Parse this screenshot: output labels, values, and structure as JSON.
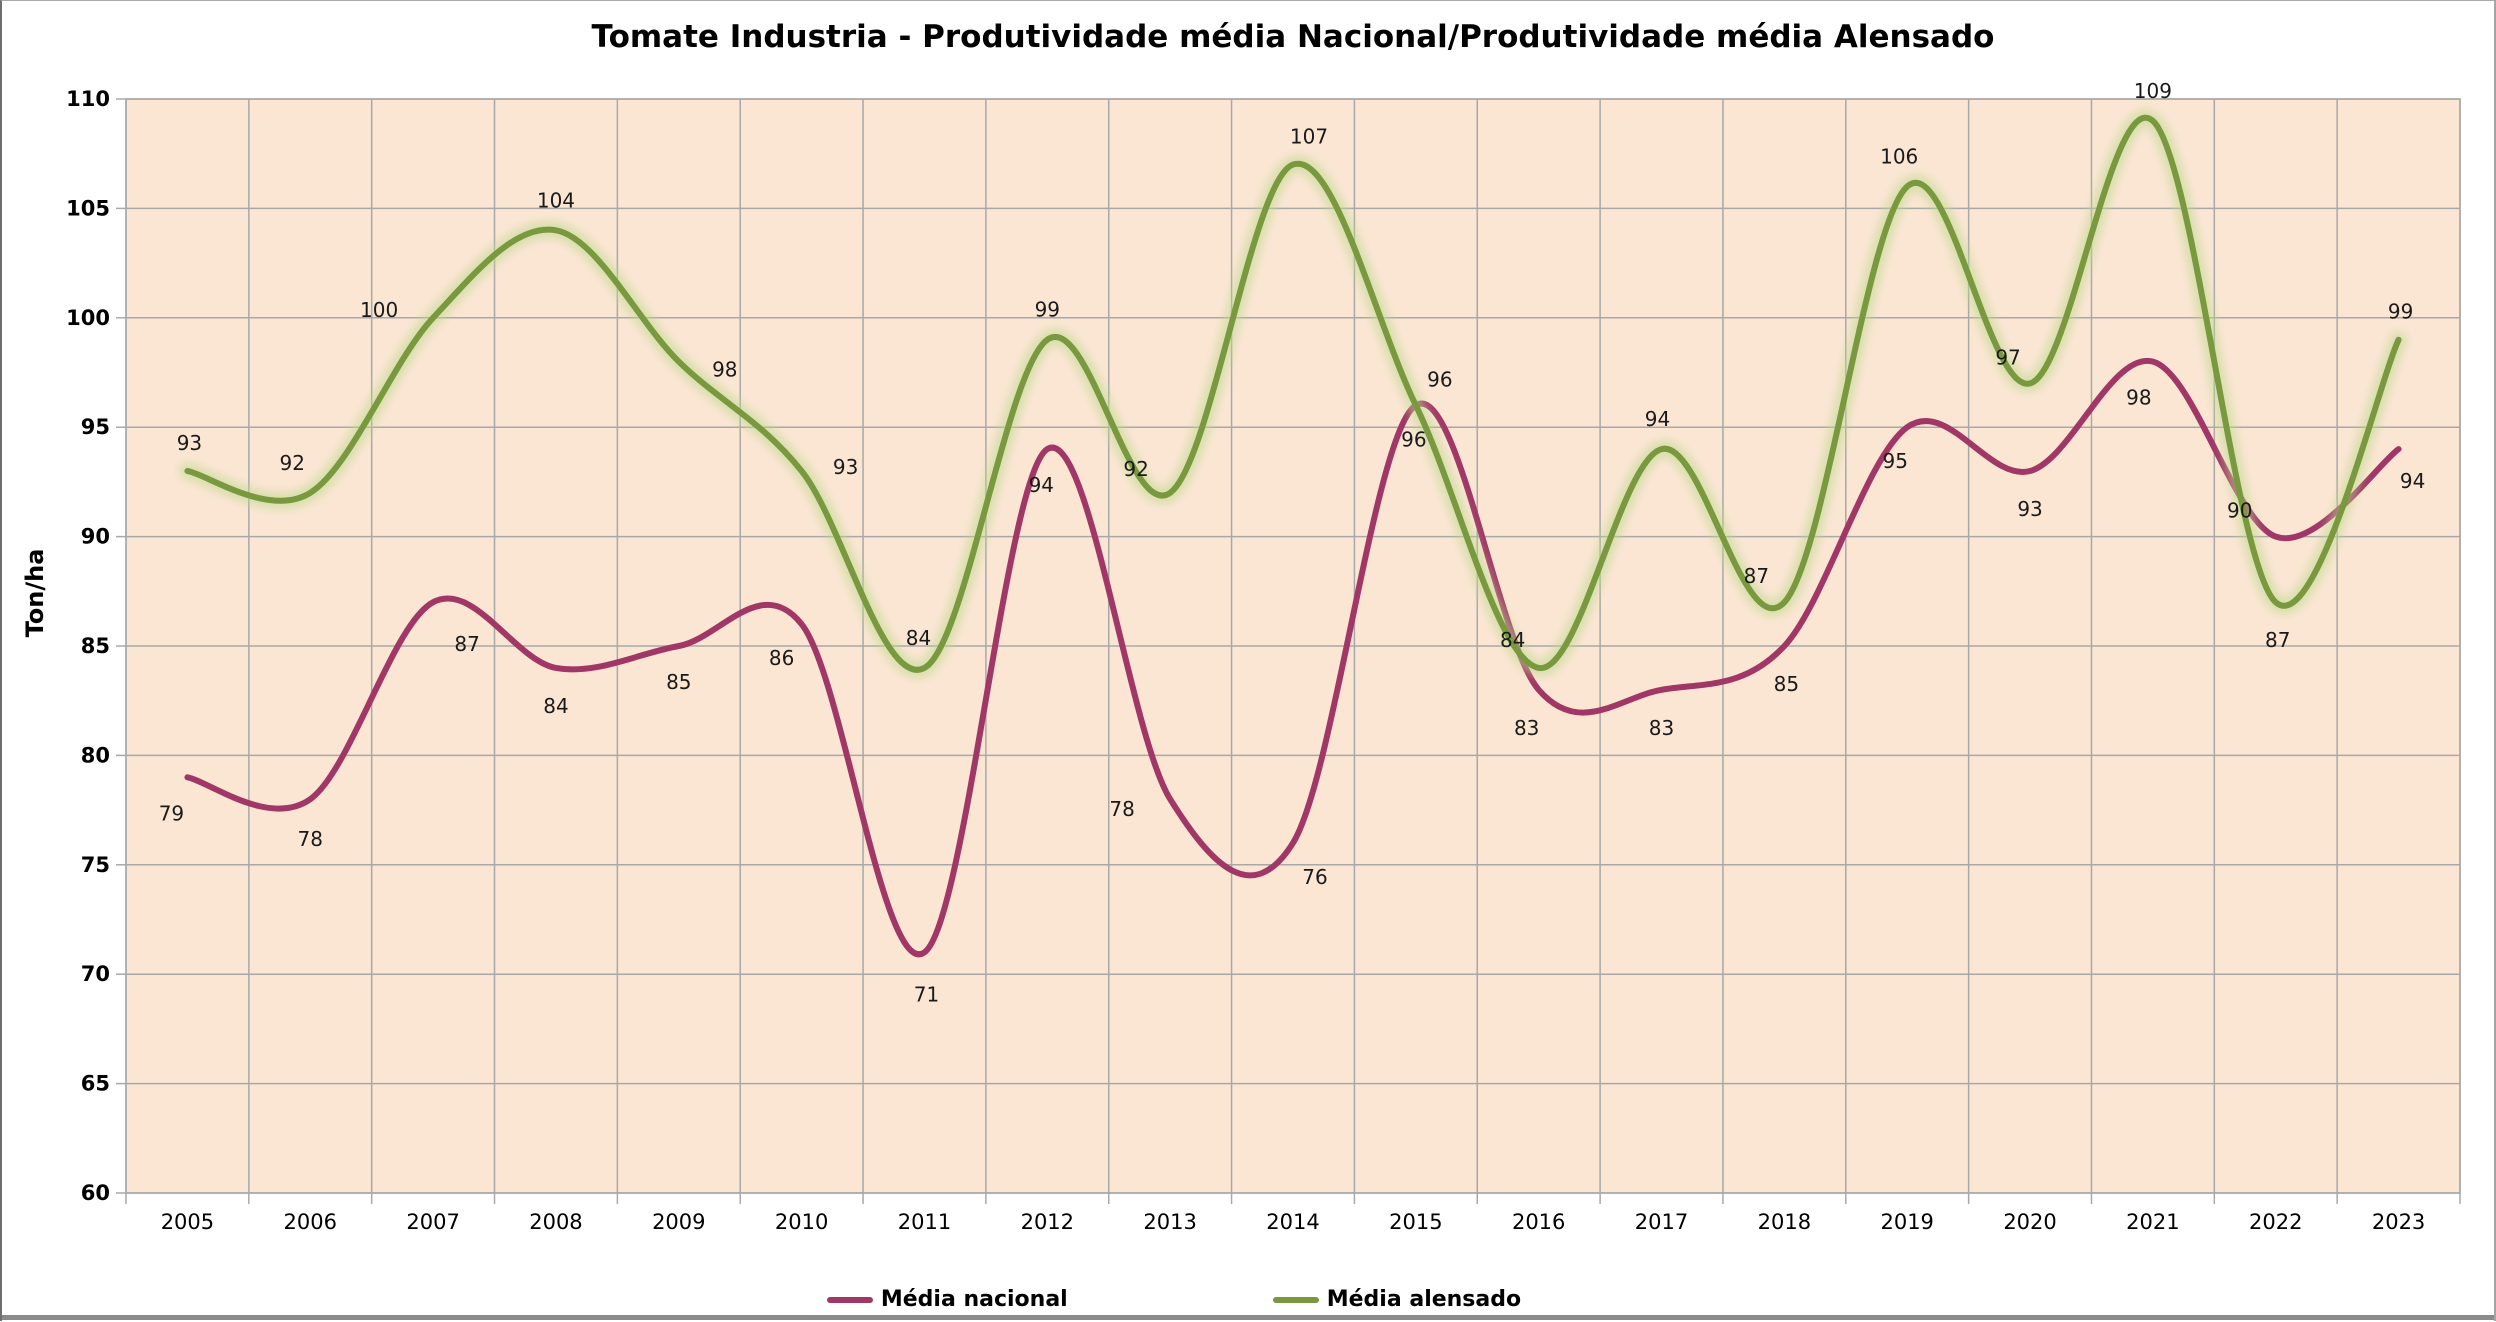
{
  "window": {
    "bottom_bar_color": "#8a8a8a"
  },
  "chart_data": {
    "type": "line",
    "title": "Tomate Industria - Produtividade média Nacional/Produtividade média Alensado",
    "ylabel": "Ton/ha",
    "xlabel": "",
    "categories": [
      "2005",
      "2006",
      "2007",
      "2008",
      "2009",
      "2010",
      "2011",
      "2012",
      "2013",
      "2014",
      "2015",
      "2016",
      "2017",
      "2018",
      "2019",
      "2020",
      "2021",
      "2022",
      "2023"
    ],
    "yticks": [
      60,
      65,
      70,
      75,
      80,
      85,
      90,
      95,
      100,
      105,
      110
    ],
    "ylim": [
      60,
      110
    ],
    "grid": true,
    "legend_position": "bottom",
    "plot_bg": "#FBE6D4",
    "grid_color": "#A8A8A8",
    "series": [
      {
        "name": "Média nacional",
        "color": "#A13767",
        "values": [
          79,
          78,
          87,
          84,
          85,
          86,
          71,
          94,
          78,
          76,
          96,
          83,
          83,
          85,
          95,
          93,
          98,
          90,
          94
        ],
        "label_offsets": [
          [
            -16,
            36
          ],
          [
            0,
            40
          ],
          [
            34,
            42
          ],
          [
            0,
            38
          ],
          [
            0,
            36
          ],
          [
            -20,
            34
          ],
          [
            2,
            42
          ],
          [
            -6,
            36
          ],
          [
            -48,
            10
          ],
          [
            22,
            34
          ],
          [
            -2,
            34
          ],
          [
            -12,
            38
          ],
          [
            0,
            38
          ],
          [
            2,
            38
          ],
          [
            -12,
            34
          ],
          [
            0,
            38
          ],
          [
            -14,
            36
          ],
          [
            -36,
            -26
          ],
          [
            14,
            32
          ]
        ]
      },
      {
        "name": "Média alensado",
        "color": "#79993E",
        "glow_color": "#BCD98C",
        "values": [
          93,
          92,
          100,
          104,
          98,
          93,
          84,
          99,
          92,
          107,
          96,
          84,
          94,
          87,
          106,
          97,
          109,
          87,
          99
        ],
        "label_offsets": [
          [
            2,
            -28
          ],
          [
            -18,
            -30
          ],
          [
            -54,
            -8
          ],
          [
            0,
            -30
          ],
          [
            46,
            8
          ],
          [
            44,
            -4
          ],
          [
            -6,
            -30
          ],
          [
            0,
            -30
          ],
          [
            -34,
            -24
          ],
          [
            16,
            -28
          ],
          [
            24,
            -26
          ],
          [
            -26,
            -28
          ],
          [
            -4,
            -30
          ],
          [
            -28,
            -26
          ],
          [
            -8,
            -30
          ],
          [
            -22,
            -26
          ],
          [
            0,
            -30
          ],
          [
            2,
            38
          ],
          [
            2,
            -28
          ]
        ]
      }
    ]
  }
}
